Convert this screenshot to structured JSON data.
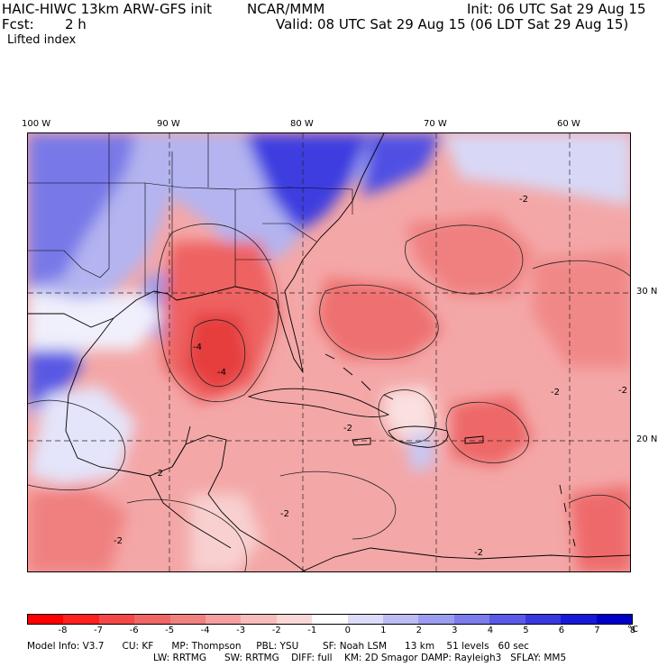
{
  "header": {
    "model_title": "HAIC-HIWC 13km ARW-GFS init",
    "org": "NCAR/MMM",
    "init_line": "Init: 06 UTC Sat 29 Aug 15",
    "fcst_label": "Fcst:",
    "fcst_value": "2 h",
    "valid_line": "Valid: 08 UTC Sat 29 Aug 15 (06 LDT Sat 29 Aug 15)",
    "field_name": "Lifted index"
  },
  "map": {
    "lon_labels": [
      "100 W",
      "90 W",
      "80 W",
      "70 W",
      "60 W"
    ],
    "lat_labels": [
      "30 N",
      "20 N"
    ],
    "contour_labels": [
      "-2",
      "-2",
      "-2",
      "-2",
      "-2",
      "-2",
      "-2",
      "-4",
      "-4",
      "-2"
    ]
  },
  "colorbar": {
    "colors": [
      "#ff0000",
      "#ff2020",
      "#f44848",
      "#f06666",
      "#f18080",
      "#f4a0a0",
      "#f7bcbc",
      "#fbd8d8",
      "#ffffff",
      "#dcdcf8",
      "#bcbcf4",
      "#9c9cf0",
      "#7c7cec",
      "#5a5ae8",
      "#3838e0",
      "#1818d8",
      "#0000c8"
    ],
    "tick_labels": [
      "-8",
      "-7",
      "-6",
      "-5",
      "-4",
      "-3",
      "-2",
      "-1",
      "0",
      "1",
      "2",
      "3",
      "4",
      "5",
      "6",
      "7",
      "8"
    ],
    "unit": "°C"
  },
  "model_info": {
    "line1": "Model Info: V3.7      CU: KF      MP: Thompson     PBL: YSU        SF: Noah LSM      13 km    51 levels   60 sec",
    "line2": "LW: RRTMG      SW: RRTMG    DIFF: full    KM: 2D Smagor DAMP: Rayleigh3   SFLAY: MM5"
  }
}
